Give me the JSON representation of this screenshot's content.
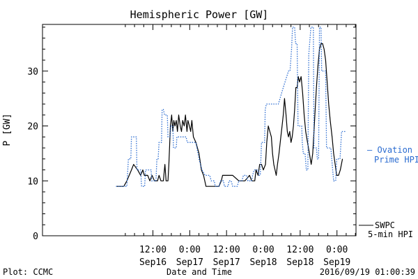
{
  "chart_data": {
    "type": "line",
    "title": "Hemispheric Power [GW]",
    "ylabel": "P [GW]",
    "xlabel": "Date and Time",
    "ylim": [
      0,
      38.5
    ],
    "xlim": [
      0,
      102.2
    ],
    "x_unit": "hours from Sep 15 00:00 (2016)",
    "yticks": [
      0,
      10,
      20,
      30
    ],
    "xticks": [
      {
        "x": 36,
        "line1": "12:00",
        "line2": "Sep16"
      },
      {
        "x": 48,
        "line1": "0:00",
        "line2": "Sep17"
      },
      {
        "x": 60,
        "line1": "12:00",
        "line2": "Sep17"
      },
      {
        "x": 72,
        "line1": "0:00",
        "line2": "Sep18"
      },
      {
        "x": 84,
        "line1": "12:00",
        "line2": "Sep18"
      },
      {
        "x": 96,
        "line1": "0:00",
        "line2": "Sep19"
      }
    ],
    "grid": false,
    "legend_position": "right",
    "series": [
      {
        "name": "SWPC 5-min HPI",
        "color": "#000000",
        "style": "solid",
        "points": [
          [
            24.0,
            9
          ],
          [
            26.5,
            9
          ],
          [
            27.5,
            10
          ],
          [
            29.0,
            12
          ],
          [
            29.7,
            13
          ],
          [
            31.0,
            12
          ],
          [
            32.0,
            11
          ],
          [
            32.7,
            12
          ],
          [
            33.2,
            11
          ],
          [
            34.3,
            11
          ],
          [
            35.0,
            10
          ],
          [
            35.7,
            11
          ],
          [
            36.5,
            10
          ],
          [
            37.5,
            10
          ],
          [
            38.0,
            11
          ],
          [
            38.6,
            10
          ],
          [
            39.4,
            10
          ],
          [
            39.9,
            13
          ],
          [
            40.3,
            10
          ],
          [
            40.9,
            10
          ],
          [
            41.2,
            13
          ],
          [
            41.7,
            20
          ],
          [
            42.1,
            22
          ],
          [
            42.5,
            19
          ],
          [
            42.8,
            21
          ],
          [
            43.2,
            20
          ],
          [
            43.6,
            21
          ],
          [
            44.0,
            19
          ],
          [
            44.4,
            22
          ],
          [
            44.9,
            20
          ],
          [
            45.3,
            19
          ],
          [
            45.7,
            21
          ],
          [
            46.2,
            20
          ],
          [
            46.6,
            22
          ],
          [
            47.1,
            19
          ],
          [
            47.4,
            21
          ],
          [
            47.9,
            20
          ],
          [
            48.3,
            19
          ],
          [
            48.7,
            21
          ],
          [
            49.2,
            18
          ],
          [
            50.0,
            17
          ],
          [
            51.0,
            15
          ],
          [
            51.8,
            12
          ],
          [
            52.5,
            11
          ],
          [
            53.3,
            9
          ],
          [
            55.0,
            9
          ],
          [
            57.5,
            9
          ],
          [
            58.3,
            10
          ],
          [
            58.7,
            11
          ],
          [
            60.0,
            11
          ],
          [
            62.0,
            11
          ],
          [
            64.0,
            10
          ],
          [
            66.0,
            10
          ],
          [
            67.5,
            11
          ],
          [
            68.2,
            10
          ],
          [
            69.2,
            10
          ],
          [
            69.6,
            12
          ],
          [
            70.3,
            11
          ],
          [
            70.8,
            13
          ],
          [
            71.4,
            13
          ],
          [
            72.0,
            12
          ],
          [
            72.7,
            13
          ],
          [
            73.1,
            17
          ],
          [
            73.6,
            20
          ],
          [
            74.1,
            19
          ],
          [
            74.6,
            18
          ],
          [
            75.0,
            15
          ],
          [
            75.4,
            13
          ],
          [
            75.8,
            12
          ],
          [
            76.2,
            11
          ],
          [
            76.6,
            13
          ],
          [
            77.1,
            15
          ],
          [
            77.7,
            18
          ],
          [
            78.1,
            20
          ],
          [
            78.5,
            22
          ],
          [
            78.9,
            25
          ],
          [
            79.4,
            22
          ],
          [
            79.8,
            19
          ],
          [
            80.2,
            18
          ],
          [
            80.6,
            19
          ],
          [
            81.0,
            17
          ],
          [
            81.4,
            18
          ],
          [
            81.8,
            20
          ],
          [
            82.2,
            23
          ],
          [
            82.6,
            27
          ],
          [
            83.0,
            27
          ],
          [
            83.4,
            29
          ],
          [
            83.8,
            28
          ],
          [
            84.3,
            29
          ],
          [
            84.8,
            26
          ],
          [
            85.3,
            22
          ],
          [
            85.8,
            19
          ],
          [
            86.4,
            17
          ],
          [
            87.0,
            15
          ],
          [
            87.6,
            13
          ],
          [
            88.1,
            15
          ],
          [
            88.5,
            19
          ],
          [
            88.9,
            23
          ],
          [
            89.3,
            27
          ],
          [
            89.8,
            31
          ],
          [
            90.3,
            34
          ],
          [
            90.8,
            35
          ],
          [
            91.3,
            35
          ],
          [
            91.8,
            34
          ],
          [
            92.3,
            32
          ],
          [
            92.8,
            28
          ],
          [
            93.3,
            24
          ],
          [
            93.8,
            21
          ],
          [
            94.4,
            18
          ],
          [
            94.9,
            15
          ],
          [
            95.4,
            13
          ],
          [
            95.9,
            11
          ],
          [
            96.5,
            11
          ],
          [
            97.1,
            12
          ],
          [
            97.8,
            14
          ]
        ]
      },
      {
        "name": "Ovation Prime HPI",
        "color": "#2a6bd0",
        "style": "dotted",
        "points": [
          [
            24.0,
            9
          ],
          [
            27.5,
            9
          ],
          [
            28.0,
            14
          ],
          [
            28.8,
            14
          ],
          [
            29.0,
            18
          ],
          [
            30.6,
            18
          ],
          [
            30.8,
            12
          ],
          [
            32.0,
            12
          ],
          [
            32.3,
            9
          ],
          [
            33.3,
            9
          ],
          [
            33.6,
            12
          ],
          [
            35.4,
            12
          ],
          [
            35.6,
            10
          ],
          [
            37.0,
            10
          ],
          [
            37.3,
            14
          ],
          [
            37.7,
            14
          ],
          [
            38.0,
            17
          ],
          [
            38.8,
            17
          ],
          [
            39.0,
            23
          ],
          [
            39.4,
            23
          ],
          [
            39.8,
            22
          ],
          [
            40.7,
            22
          ],
          [
            40.9,
            18
          ],
          [
            41.6,
            18
          ],
          [
            41.8,
            20
          ],
          [
            42.5,
            20
          ],
          [
            42.7,
            16
          ],
          [
            43.6,
            16
          ],
          [
            43.8,
            18
          ],
          [
            46.8,
            18
          ],
          [
            47.2,
            17
          ],
          [
            50.0,
            17
          ],
          [
            51.0,
            14
          ],
          [
            52.0,
            12
          ],
          [
            53.0,
            11
          ],
          [
            54.5,
            11
          ],
          [
            55.0,
            10
          ],
          [
            56.0,
            10
          ],
          [
            56.3,
            9
          ],
          [
            57.6,
            9
          ],
          [
            58.0,
            10
          ],
          [
            59.0,
            10
          ],
          [
            59.3,
            9
          ],
          [
            60.5,
            9
          ],
          [
            60.8,
            10
          ],
          [
            61.5,
            10
          ],
          [
            62.0,
            9
          ],
          [
            63.5,
            9
          ],
          [
            64.0,
            10
          ],
          [
            65.0,
            10
          ],
          [
            65.5,
            11
          ],
          [
            66.5,
            11
          ],
          [
            67.0,
            10
          ],
          [
            68.2,
            10
          ],
          [
            68.5,
            11
          ],
          [
            69.0,
            12
          ],
          [
            70.3,
            12
          ],
          [
            70.6,
            11
          ],
          [
            71.0,
            11
          ],
          [
            71.4,
            17
          ],
          [
            72.4,
            17
          ],
          [
            72.6,
            23
          ],
          [
            73.0,
            24
          ],
          [
            76.9,
            24
          ],
          [
            78.5,
            27
          ],
          [
            80.2,
            30
          ],
          [
            80.7,
            30
          ],
          [
            81.2,
            34
          ],
          [
            81.5,
            38
          ],
          [
            82.2,
            38
          ],
          [
            82.5,
            35
          ],
          [
            83.0,
            35
          ],
          [
            83.3,
            20
          ],
          [
            84.5,
            20
          ],
          [
            84.7,
            17
          ],
          [
            85.0,
            15
          ],
          [
            85.6,
            15
          ],
          [
            86.0,
            12
          ],
          [
            86.5,
            12
          ],
          [
            86.8,
            33
          ],
          [
            87.5,
            38
          ],
          [
            88.3,
            38
          ],
          [
            88.5,
            16
          ],
          [
            89.3,
            16
          ],
          [
            89.6,
            14
          ],
          [
            90.0,
            14
          ],
          [
            90.3,
            38
          ],
          [
            90.8,
            38
          ],
          [
            91.0,
            30
          ],
          [
            92.3,
            30
          ],
          [
            92.6,
            16
          ],
          [
            94.0,
            16
          ],
          [
            94.3,
            14
          ],
          [
            94.6,
            12
          ],
          [
            94.9,
            10
          ],
          [
            95.6,
            10
          ],
          [
            95.9,
            14
          ],
          [
            97.0,
            14
          ],
          [
            97.5,
            19
          ],
          [
            99.0,
            19
          ]
        ]
      }
    ]
  },
  "legend": {
    "ovation_line1": "— Ovation",
    "ovation_line2": "Prime HPI",
    "swpc_line1": "SWPC",
    "swpc_line2": "5-min HPI"
  },
  "footer": {
    "plot_label": "Plot: CCMC",
    "xlabel": "Date and Time",
    "timestamp": "2016/09/19 01:00:39"
  },
  "colors": {
    "axis": "#000000",
    "swpc": "#000000",
    "ovation": "#2a6bd0"
  }
}
